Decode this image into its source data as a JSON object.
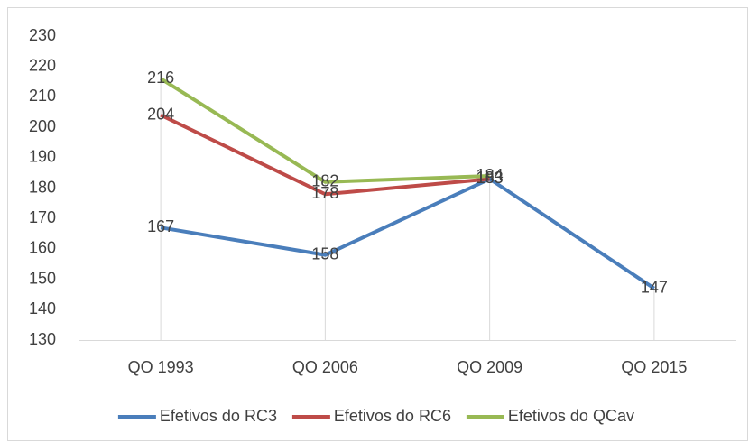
{
  "chart_data": {
    "type": "line",
    "categories": [
      "QO 1993",
      "QO 2006",
      "QO 2009",
      "QO 2015"
    ],
    "series": [
      {
        "name": "Efetivos do RC3",
        "color": "#4a7ebb",
        "values": [
          167,
          158,
          183,
          147
        ]
      },
      {
        "name": "Efetivos do RC6",
        "color": "#be4b48",
        "values": [
          204,
          178,
          183,
          null
        ]
      },
      {
        "name": "Efetivos do QCav",
        "color": "#98b954",
        "values": [
          216,
          182,
          184,
          null
        ]
      }
    ],
    "ylim": [
      130,
      230
    ],
    "yticks": [
      130,
      140,
      150,
      160,
      170,
      180,
      190,
      200,
      210,
      220,
      230
    ],
    "drop_lines": true,
    "data_labels": true,
    "legend": "bottom"
  }
}
